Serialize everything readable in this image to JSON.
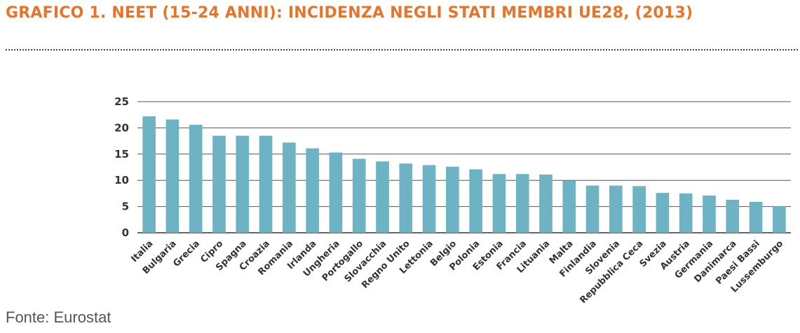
{
  "header": {
    "title": "GRAFICO 1. NEET (15-24 ANNI): INCIDENZA NEGLI STATI MEMBRI UE28, (2013)"
  },
  "footer": {
    "source": "Fonte: Eurostat"
  },
  "colors": {
    "bar": "#6db3c3",
    "title": "#e8742a",
    "grid": "#555555"
  },
  "chart_data": {
    "type": "bar",
    "title": "GRAFICO 1. NEET (15-24 ANNI): INCIDENZA NEGLI STATI MEMBRI UE28, (2013)",
    "xlabel": "",
    "ylabel": "",
    "ylim": [
      0,
      25
    ],
    "yticks": [
      0,
      5,
      10,
      15,
      20,
      25
    ],
    "grid": true,
    "legend": "none",
    "categories": [
      "Italia",
      "Bulgaria",
      "Grecia",
      "Cipro",
      "Spagna",
      "Croazia",
      "Romania",
      "Irlanda",
      "Ungheria",
      "Portogallo",
      "Slovacchia",
      "Regno Unito",
      "Lettonia",
      "Belgio",
      "Polonia",
      "Estonia",
      "Francia",
      "Lituania",
      "Malta",
      "Finlandia",
      "Slovenia",
      "Repubblica Ceca",
      "Svezia",
      "Austria",
      "Germania",
      "Danimarca",
      "Paesi Bassi",
      "Lussemburgo"
    ],
    "values": [
      22.2,
      21.6,
      20.6,
      18.5,
      18.5,
      18.5,
      17.2,
      16.1,
      15.3,
      14.1,
      13.6,
      13.2,
      12.9,
      12.6,
      12.1,
      11.2,
      11.2,
      11.1,
      9.9,
      9.0,
      9.0,
      8.9,
      7.6,
      7.5,
      7.1,
      6.3,
      5.9,
      5.1
    ]
  }
}
